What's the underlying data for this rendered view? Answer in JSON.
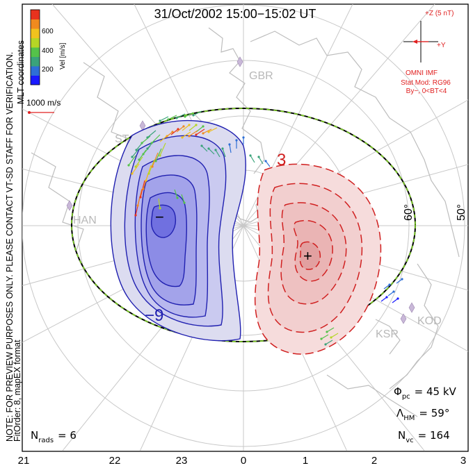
{
  "title": "31/Oct/2002 15:00−15:02 UT",
  "side_note_line1": "NOTE: FOR PREVIEW PURPOSES ONLY. PLEASE CONTACT VT-SD STAFF FOR VERIFICATION.",
  "side_note_line2": "FitOrder: 8, mapEX format",
  "coords_label": "MLT coordinates",
  "colorbar": {
    "label": "Vel [m/s]",
    "ticks": [
      "600",
      "400",
      "200"
    ],
    "colors": [
      "#1a1aff",
      "#2e6fd6",
      "#3aa37a",
      "#55c24a",
      "#b5d626",
      "#f0c21e",
      "#f08a1e",
      "#e8321e"
    ]
  },
  "ref_vector": {
    "label": "1000 m/s",
    "color": "#e02020"
  },
  "imf": {
    "z_label": "+Z (5 nT)",
    "y_label": "+Y",
    "source": "OMNI IMF",
    "stat_mod": "Stat Mod: RG96",
    "condition": "By−, 0<BT<4",
    "color": "#e02020"
  },
  "stations": [
    "GBR",
    "STO",
    "HAN",
    "KOD",
    "KSR"
  ],
  "latitude_labels": [
    "60°",
    "50°"
  ],
  "contour_labels": {
    "negative": "−9",
    "positive": "3"
  },
  "extrema": {
    "min_mark": "−",
    "max_mark": "+"
  },
  "stats": {
    "phi_symbol": "Φ",
    "phi_sub": "pc",
    "phi_value": "= 45 kV",
    "lambda_symbol": "Λ",
    "lambda_sub": "HM",
    "lambda_value": "= 59°",
    "nvc_symbol": "N",
    "nvc_sub": "vc",
    "nvc_value": "= 164",
    "nrads_symbol": "N",
    "nrads_sub": "rads",
    "nrads_value": "= 6"
  },
  "mlt_ticks": [
    "21",
    "22",
    "23",
    "0",
    "1",
    "2",
    "3"
  ]
}
